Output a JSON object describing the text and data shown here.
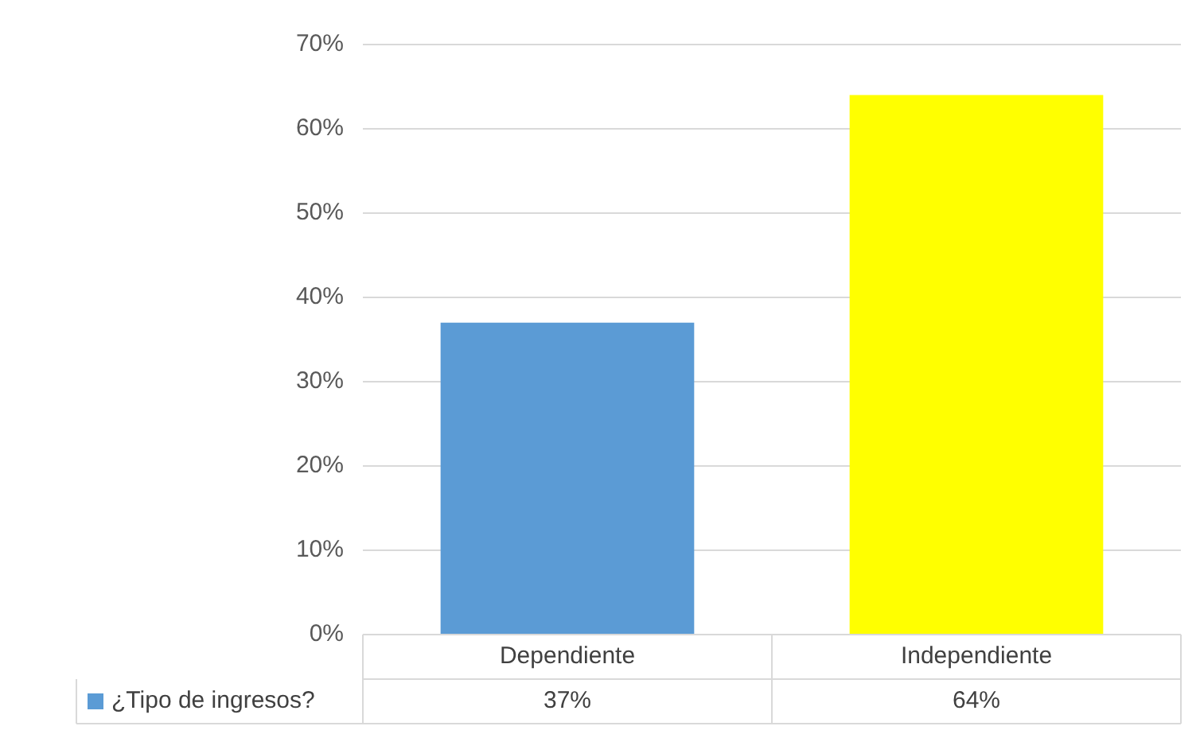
{
  "chart_data": {
    "type": "bar",
    "categories": [
      "Dependiente",
      "Independiente"
    ],
    "series": [
      {
        "name": "¿Tipo de ingresos?",
        "color": "#5b9bd5",
        "colors": [
          "#5b9bd5",
          "#ffff00"
        ],
        "values": [
          37,
          64
        ],
        "value_labels": [
          "37%",
          "64%"
        ]
      }
    ],
    "ylim": [
      0,
      70
    ],
    "yticks": [
      {
        "value": 0,
        "label": "0%"
      },
      {
        "value": 10,
        "label": "10%"
      },
      {
        "value": 20,
        "label": "20%"
      },
      {
        "value": 30,
        "label": "30%"
      },
      {
        "value": 40,
        "label": "40%"
      },
      {
        "value": 50,
        "label": "50%"
      },
      {
        "value": 60,
        "label": "60%"
      },
      {
        "value": 70,
        "label": "70%"
      }
    ],
    "grid": "y",
    "legend": "bottom"
  }
}
